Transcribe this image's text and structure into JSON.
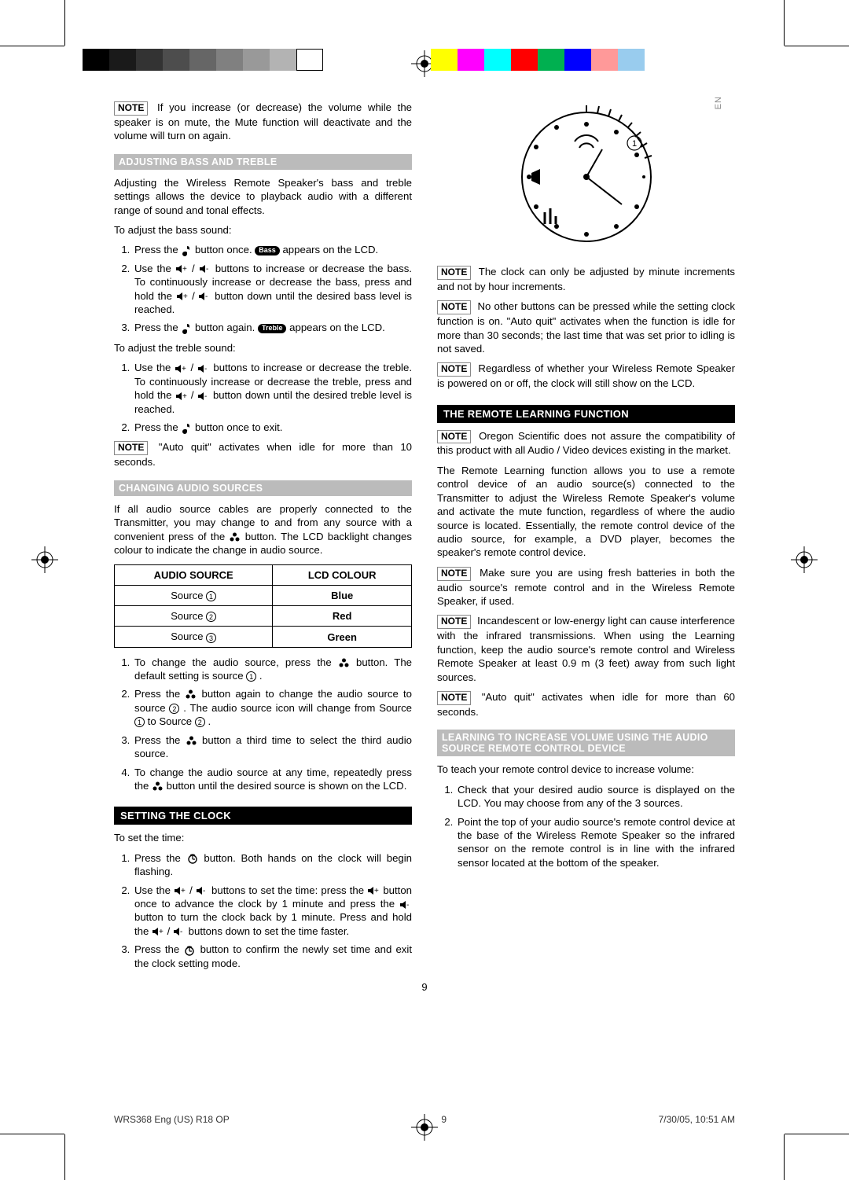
{
  "lang_tag": "EN",
  "printer_marks": {
    "gray_bars": [
      "#000000",
      "#1a1a1a",
      "#333333",
      "#4d4d4d",
      "#666666",
      "#808080",
      "#999999",
      "#b3b3b3",
      "#ffffff"
    ],
    "color_bars": [
      "#ffff00",
      "#ff00ff",
      "#00ffff",
      "#ff0000",
      "#00b050",
      "#0000ff",
      "#ff9999",
      "#99ccee"
    ]
  },
  "left": {
    "note_mute": "If you increase (or decrease) the volume while the speaker is on mute, the Mute function will deactivate and the volume will turn on again.",
    "h_bass_treble": "ADJUSTING BASS AND TREBLE",
    "bass_intro": "Adjusting the Wireless Remote Speaker's bass and treble settings allows the device to playback audio with a different range of sound and tonal effects.",
    "bass_label": "To adjust the bass sound:",
    "bass_steps": {
      "s1_a": "Press the ",
      "s1_b": " button once. ",
      "s1_badge": "Bass",
      "s1_c": " appears on the LCD.",
      "s2_a": "Use the ",
      "s2_b": " buttons to increase or decrease the bass. To continuously increase or decrease the bass, press and hold the ",
      "s2_c": " button down until the desired bass level is reached.",
      "s3_a": "Press the ",
      "s3_b": " button again. ",
      "s3_badge": "Treble",
      "s3_c": " appears on the LCD."
    },
    "treble_label": "To adjust the treble sound:",
    "treble_steps": {
      "s1_a": "Use the ",
      "s1_b": " buttons to increase or decrease the treble. To continuously increase or decrease the treble, press and hold the ",
      "s1_c": " button down until the desired treble level is reached.",
      "s2_a": "Press the ",
      "s2_b": " button once to exit."
    },
    "note_autoquit10": "\"Auto quit\" activates when idle for more than 10 seconds.",
    "h_sources": "CHANGING AUDIO SOURCES",
    "sources_intro_a": "If all audio source cables are properly connected to the Transmitter, you may change to and from any source with a convenient press of the ",
    "sources_intro_b": " button. The LCD backlight changes colour to indicate the change in audio source.",
    "table": {
      "h1": "AUDIO SOURCE",
      "h2": "LCD COLOUR",
      "r1c1": "Source ",
      "r1n": "1",
      "r1c2": "Blue",
      "r2c1": "Source ",
      "r2n": "2",
      "r2c2": "Red",
      "r3c1": "Source ",
      "r3n": "3",
      "r3c2": "Green"
    },
    "source_steps": {
      "s1_a": "To change the audio source, press the ",
      "s1_b": " button. The default setting is source ",
      "s1_n": "1",
      "s1_c": " .",
      "s2_a": "Press the ",
      "s2_b": " button again to change the audio source to source ",
      "s2_n1": "2",
      "s2_c": " . The audio source icon will change from Source ",
      "s2_n2": "1",
      "s2_d": " to Source ",
      "s2_n3": "2",
      "s2_e": " .",
      "s3_a": "Press the ",
      "s3_b": " button a third time to select the third audio source.",
      "s4_a": "To change the audio source at any time, repeatedly press the ",
      "s4_b": " button until the desired source is shown on the LCD."
    },
    "h_clock": "SETTING THE CLOCK",
    "clock_label": "To set the time:",
    "clock_steps": {
      "s1_a": "Press the ",
      "s1_b": " button. Both hands on the clock will begin flashing.",
      "s2_a": "Use the ",
      "s2_b": " buttons to set the time: press the ",
      "s2_c": " button once to advance the clock by 1 minute and press the ",
      "s2_d": " button to turn the clock back by 1 minute. Press and hold the ",
      "s2_e": " buttons down to set the time faster.",
      "s3_a": "Press the ",
      "s3_b": " button to confirm the newly set time and exit the clock setting mode."
    }
  },
  "right": {
    "clock_fig": {
      "indicator_n": "1"
    },
    "note_minute": "The clock can only be adjusted by minute increments and not by hour increments.",
    "note_nobuttons": "No other buttons can be pressed while the setting clock function is on. \"Auto quit\" activates when the function is idle for more than 30 seconds; the last time that was set prior to idling is not saved.",
    "note_power": "Regardless of whether your Wireless Remote Speaker is powered on or off, the clock will still show on the LCD.",
    "h_remote": "THE REMOTE LEARNING FUNCTION",
    "note_compat": "Oregon Scientific does not assure the compatibility of this product with all Audio / Video devices existing in the market.",
    "remote_para": "The Remote Learning function allows you to use a remote control device of an audio source(s) connected to the Transmitter to adjust the Wireless Remote Speaker's volume and activate the mute function, regardless of where the audio source is located. Essentially, the remote control device of the audio source, for example, a DVD player, becomes the speaker's remote control device.",
    "note_batteries": "Make sure you are using fresh batteries in both the audio source's remote control and in the Wireless Remote Speaker, if used.",
    "note_light": "Incandescent or low-energy light can cause interference with the infrared transmissions. When using the Learning function, keep the audio source's remote control and Wireless Remote Speaker at least 0.9 m (3 feet) away from such light sources.",
    "note_autoquit60": "\"Auto quit\" activates when idle for more than 60 seconds.",
    "h_learning": "LEARNING TO INCREASE VOLUME USING THE AUDIO SOURCE REMOTE CONTROL DEVICE",
    "learn_intro": "To teach your remote control device to increase volume:",
    "learn_steps": {
      "s1": "Check that your desired audio source is displayed on the LCD. You may choose from any of the 3 sources.",
      "s2": "Point the top of your audio source's remote control device at the base of the Wireless Remote Speaker so the infrared sensor on the remote control is in line with the infrared sensor located at the bottom of the speaker."
    }
  },
  "page_number": "9",
  "footer": {
    "left": "WRS368 Eng (US) R18 OP",
    "mid": "9",
    "right": "7/30/05, 10:51 AM"
  },
  "note_label": "NOTE"
}
